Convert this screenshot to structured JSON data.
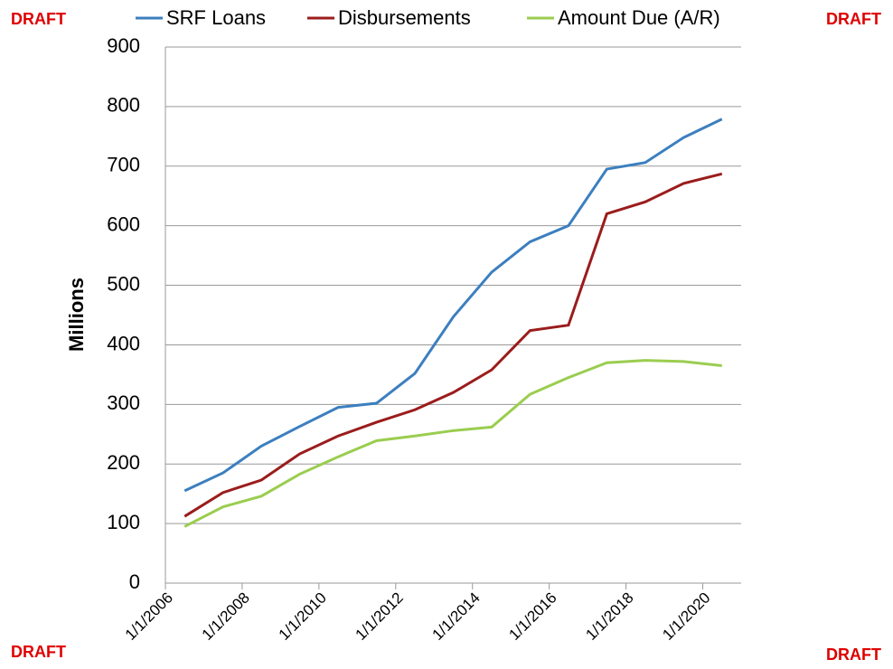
{
  "chart_data": {
    "type": "line",
    "annotations": [
      "DRAFT",
      "DRAFT",
      "DRAFT",
      "DRAFT"
    ],
    "ylabel": "Millions",
    "x": [
      2006.5,
      2007.5,
      2008.5,
      2009.5,
      2010.5,
      2011.5,
      2012.5,
      2013.5,
      2014.5,
      2015.5,
      2016.5,
      2017.5,
      2018.5,
      2019.5,
      2020.5
    ],
    "series": [
      {
        "name": "SRF Loans",
        "color": "#3c7fbf",
        "values": [
          155,
          185,
          230,
          263,
          295,
          302,
          352,
          447,
          522,
          573,
          600,
          695,
          706,
          748,
          779
        ]
      },
      {
        "name": "Disbursements",
        "color": "#9b1c1c",
        "values": [
          112,
          152,
          173,
          217,
          247,
          270,
          291,
          320,
          358,
          424,
          433,
          620,
          640,
          671,
          687
        ]
      },
      {
        "name": "Amount Due (A/R)",
        "color": "#9acd4f",
        "values": [
          95,
          128,
          146,
          183,
          212,
          239,
          247,
          256,
          262,
          317,
          345,
          370,
          374,
          372,
          365
        ]
      }
    ],
    "xlim": [
      2006,
      2021
    ],
    "xticks": [
      {
        "value": 2006,
        "label": "1/1/2006"
      },
      {
        "value": 2008,
        "label": "1/1/2008"
      },
      {
        "value": 2010,
        "label": "1/1/2010"
      },
      {
        "value": 2012,
        "label": "1/1/2012"
      },
      {
        "value": 2014,
        "label": "1/1/2014"
      },
      {
        "value": 2016,
        "label": "1/1/2016"
      },
      {
        "value": 2018,
        "label": "1/1/2018"
      },
      {
        "value": 2020,
        "label": "1/1/2020"
      }
    ],
    "ylim": [
      0,
      900
    ],
    "yticks": [
      0,
      100,
      200,
      300,
      400,
      500,
      600,
      700,
      800,
      900
    ],
    "grid": true,
    "legend": "top"
  }
}
